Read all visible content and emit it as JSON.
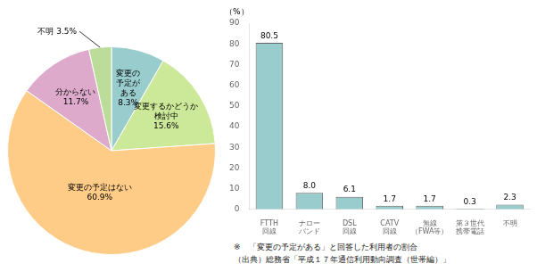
{
  "chart_data": [
    {
      "type": "pie",
      "categories": [
        "変更の\n予定が\nある",
        "変更するかどうか\n検討中",
        "変更の予定はない",
        "分からない",
        "不明"
      ],
      "values": [
        8.3,
        15.6,
        60.9,
        11.7,
        3.5
      ],
      "value_labels": [
        "8.3%",
        "15.6%",
        "60.9%",
        "11.7%",
        "3.5%"
      ],
      "colors": [
        "#99cccc",
        "#cce899",
        "#ffcc88",
        "#ddaacc",
        "#bbdd99"
      ],
      "data_labels": true,
      "legend": false
    },
    {
      "type": "bar",
      "categories": [
        "FTTH\n回線",
        "ナロー\nバンド",
        "DSL\n回線",
        "CATV\n回線",
        "無線\n（FWA等）",
        "第３世代\n携帯電話",
        "不明"
      ],
      "values": [
        80.5,
        8.0,
        6.1,
        1.7,
        1.7,
        0.3,
        2.3
      ],
      "value_labels": [
        "80.5",
        "8.0",
        "6.1",
        "1.7",
        "1.7",
        "0.3",
        "2.3"
      ],
      "color": "#99cccc",
      "ylabel": "（%）",
      "ylim": [
        0,
        90
      ],
      "yticks": [
        0,
        10,
        20,
        30,
        40,
        50,
        60,
        70,
        80,
        90
      ],
      "grid": false,
      "legend": false,
      "data_labels": true,
      "annotations": [
        "※　「変更の予定がある」と回答した利用者の割合",
        "（出典）総務省「平成１７年通信利用動向調査（世帯編）」"
      ]
    }
  ]
}
